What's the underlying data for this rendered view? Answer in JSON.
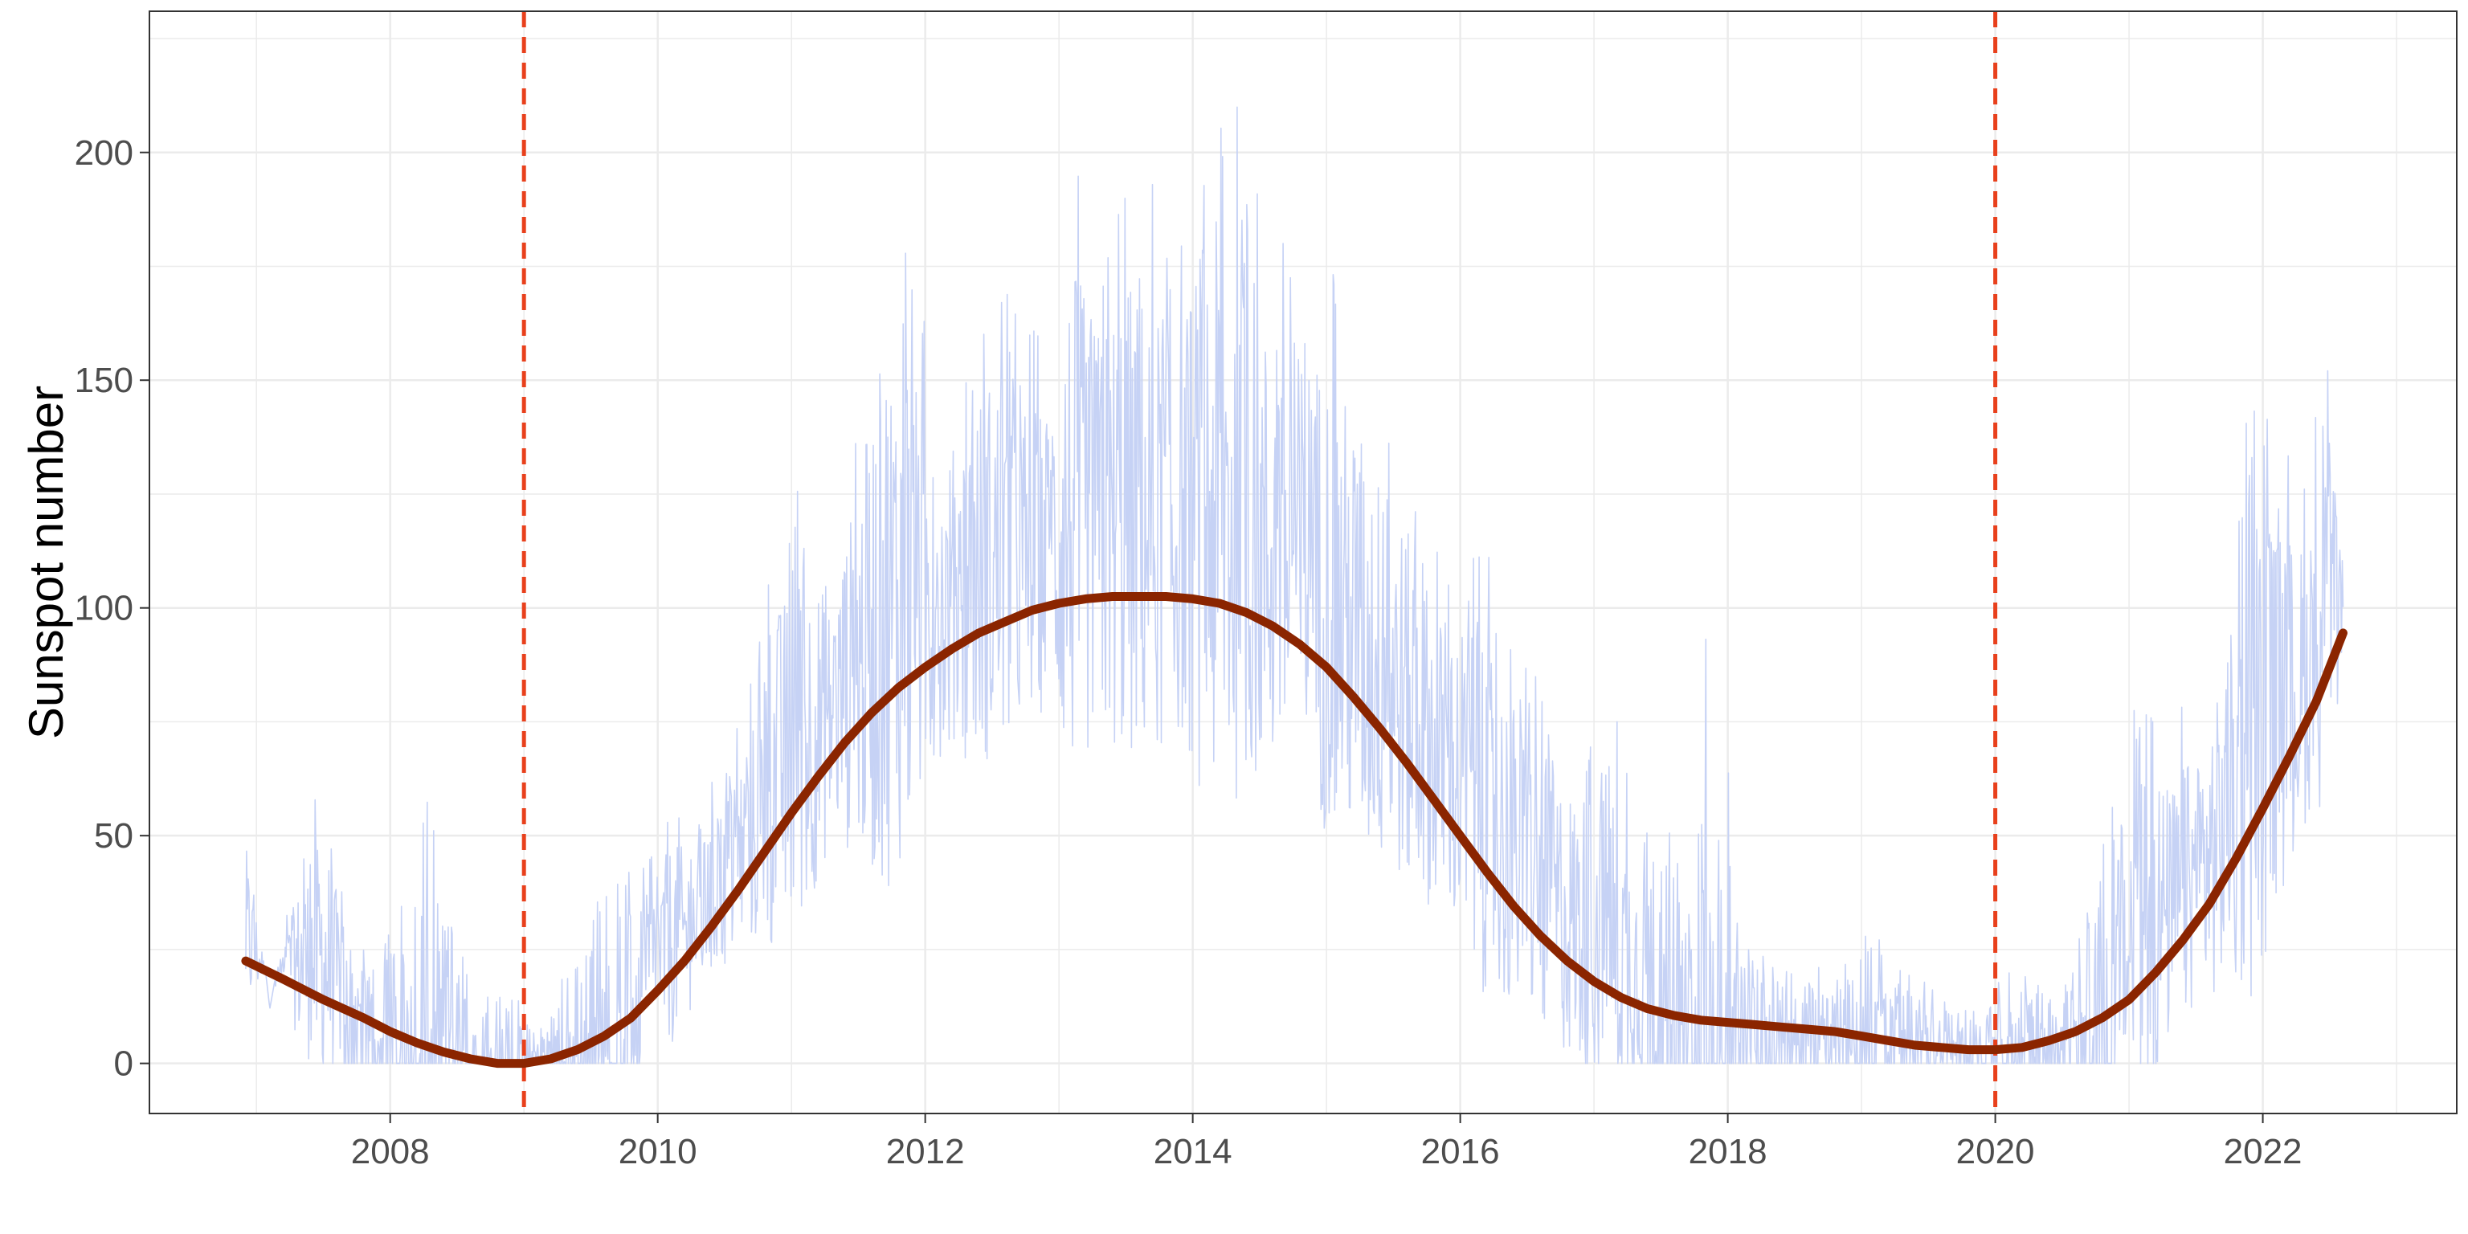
{
  "chart_data": {
    "type": "line",
    "title": "",
    "xlabel": "",
    "ylabel": "Sunspot number",
    "xlim": [
      2006.2,
      2023.45
    ],
    "ylim": [
      -11,
      231
    ],
    "x_ticks": [
      2008,
      2010,
      2012,
      2014,
      2016,
      2018,
      2020,
      2022
    ],
    "y_ticks": [
      0,
      50,
      100,
      150,
      200
    ],
    "grid": true,
    "legend": "none",
    "colors": {
      "daily": "#c6d2f5",
      "smooth": "#8b2500",
      "cycle_minimum": "#e8401c",
      "grid": "#ebebeb",
      "panel_border": "#333333"
    },
    "vlines": [
      2009.0,
      2020.0
    ],
    "series": [
      {
        "type": "line",
        "x": [
          2006.92,
          2007.1,
          2007.3,
          2007.5,
          2007.7,
          2007.9,
          2008.1,
          2008.3,
          2008.5,
          2008.7,
          2008.9,
          2009.1,
          2009.3,
          2009.5,
          2009.7,
          2009.9,
          2010.1,
          2010.3,
          2010.5,
          2010.7,
          2010.9,
          2011.1,
          2011.3,
          2011.5,
          2011.7,
          2011.9,
          2012.1,
          2012.3,
          2012.5,
          2012.7,
          2012.9,
          2013.1,
          2013.3,
          2013.5,
          2013.7,
          2013.9,
          2014.1,
          2014.3,
          2014.5,
          2014.7,
          2014.9,
          2015.1,
          2015.3,
          2015.5,
          2015.7,
          2015.9,
          2016.1,
          2016.3,
          2016.5,
          2016.7,
          2016.9,
          2017.1,
          2017.3,
          2017.5,
          2017.7,
          2017.9,
          2018.1,
          2018.3,
          2018.5,
          2018.7,
          2018.9,
          2019.1,
          2019.3,
          2019.5,
          2019.7,
          2019.9,
          2020.1,
          2020.3,
          2020.5,
          2020.7,
          2020.9,
          2021.1,
          2021.3,
          2021.5,
          2021.7,
          2021.9,
          2022.1,
          2022.3,
          2022.5,
          2022.6
        ],
        "y": [
          58,
          12,
          45,
          66,
          30,
          20,
          51,
          60,
          25,
          18,
          23,
          6,
          25,
          35,
          40,
          45,
          60,
          55,
          70,
          85,
          120,
          130,
          115,
          150,
          190,
          180,
          145,
          160,
          175,
          165,
          160,
          205,
          185,
          200,
          195,
          180,
          220,
          215,
          190,
          180,
          185,
          175,
          160,
          145,
          130,
          110,
          120,
          105,
          90,
          80,
          75,
          85,
          60,
          55,
          65,
          118,
          30,
          25,
          20,
          22,
          25,
          30,
          20,
          18,
          12,
          15,
          25,
          20,
          15,
          35,
          60,
          95,
          75,
          85,
          100,
          150,
          140,
          130,
          160,
          110
        ]
      },
      {
        "type": "smooth",
        "x": [
          2006.92,
          2007.2,
          2007.5,
          2007.8,
          2008.0,
          2008.2,
          2008.4,
          2008.6,
          2008.8,
          2009.0,
          2009.2,
          2009.4,
          2009.6,
          2009.8,
          2010.0,
          2010.2,
          2010.4,
          2010.6,
          2010.8,
          2011.0,
          2011.2,
          2011.4,
          2011.6,
          2011.8,
          2012.0,
          2012.2,
          2012.4,
          2012.6,
          2012.8,
          2013.0,
          2013.2,
          2013.4,
          2013.6,
          2013.8,
          2014.0,
          2014.2,
          2014.4,
          2014.6,
          2014.8,
          2015.0,
          2015.2,
          2015.4,
          2015.6,
          2015.8,
          2016.0,
          2016.2,
          2016.4,
          2016.6,
          2016.8,
          2017.0,
          2017.2,
          2017.4,
          2017.6,
          2017.8,
          2018.0,
          2018.2,
          2018.4,
          2018.6,
          2018.8,
          2019.0,
          2019.2,
          2019.4,
          2019.6,
          2019.8,
          2020.0,
          2020.2,
          2020.4,
          2020.6,
          2020.8,
          2021.0,
          2021.2,
          2021.4,
          2021.6,
          2021.8,
          2022.0,
          2022.2,
          2022.4,
          2022.6
        ],
        "y": [
          22.5,
          18.5,
          14,
          10,
          7,
          4.5,
          2.5,
          1,
          0,
          0,
          1,
          3,
          6,
          10,
          16,
          22.5,
          30,
          38,
          46.5,
          55,
          63,
          70.5,
          77,
          82.5,
          87,
          91,
          94.5,
          97,
          99.5,
          101,
          102,
          102.5,
          102.5,
          102.5,
          102,
          101,
          99,
          96,
          92,
          87,
          80.5,
          73.5,
          66,
          58,
          50,
          42,
          34.5,
          28,
          22.5,
          18,
          14.5,
          12,
          10.5,
          9.5,
          9,
          8.5,
          8,
          7.5,
          7,
          6,
          5,
          4,
          3.5,
          3,
          3,
          3.5,
          5,
          7,
          10,
          14,
          20,
          27,
          35,
          45,
          56,
          67.5,
          79.5,
          94.5
        ]
      }
    ]
  }
}
